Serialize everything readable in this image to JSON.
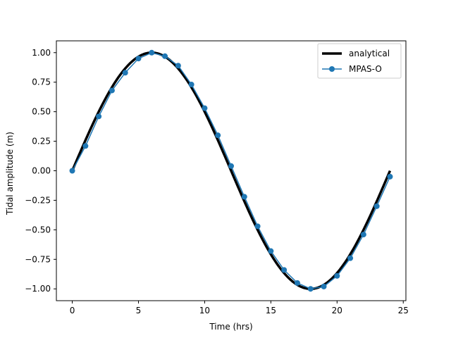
{
  "chart_data": {
    "type": "line",
    "title": "",
    "xlabel": "Time (hrs)",
    "ylabel": "Tidal amplitude (m)",
    "xlim": [
      -1.2,
      25.2
    ],
    "ylim": [
      -1.1,
      1.1
    ],
    "xticks": [
      0,
      5,
      10,
      15,
      20,
      25
    ],
    "xtick_labels": [
      "0",
      "5",
      "10",
      "15",
      "20",
      "25"
    ],
    "yticks": [
      -1.0,
      -0.75,
      -0.5,
      -0.25,
      0.0,
      0.25,
      0.5,
      0.75,
      1.0
    ],
    "ytick_labels": [
      "−1.00",
      "−0.75",
      "−0.50",
      "−0.25",
      "0.00",
      "0.25",
      "0.50",
      "0.75",
      "1.00"
    ],
    "grid": false,
    "legend_position": "upper-right",
    "series": [
      {
        "name": "analytical",
        "style": "line",
        "color": "#000000",
        "x_start": 0,
        "x_end": 24,
        "period_hours": 24,
        "amplitude": 1.0
      },
      {
        "name": "MPAS-O",
        "style": "line-marker",
        "color": "#1f77b4",
        "x": [
          0,
          1,
          2,
          3,
          4,
          5,
          6,
          7,
          8,
          9,
          10,
          11,
          12,
          13,
          14,
          15,
          16,
          17,
          18,
          19,
          20,
          21,
          22,
          23,
          24
        ],
        "y": [
          0.0,
          0.21,
          0.46,
          0.68,
          0.83,
          0.95,
          1.0,
          0.97,
          0.89,
          0.73,
          0.53,
          0.3,
          0.04,
          -0.22,
          -0.47,
          -0.68,
          -0.84,
          -0.95,
          -1.0,
          -0.98,
          -0.89,
          -0.74,
          -0.54,
          -0.3,
          -0.05
        ]
      }
    ]
  }
}
